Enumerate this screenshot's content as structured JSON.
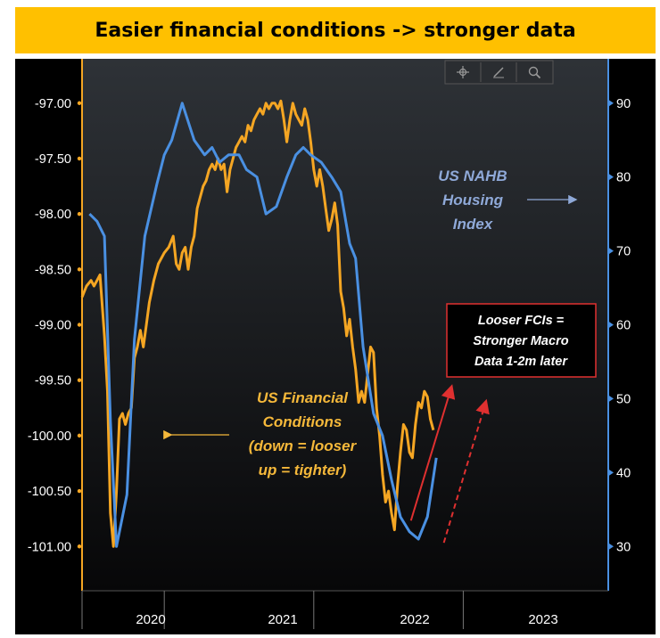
{
  "banner": {
    "title": "Easier financial conditions -> stronger data"
  },
  "toolbar": {
    "icons": [
      "crosshair-icon",
      "pencil-icon",
      "magnifier-icon"
    ]
  },
  "colors": {
    "orange": "#f5a623",
    "blue": "#4a90e2",
    "annotationBlue": "#8fa9d8",
    "annotationOrange": "#f5b83a",
    "red": "#e03030",
    "background": "#000000"
  },
  "chart_data": {
    "type": "line",
    "x_ticks": [
      "2020",
      "2021",
      "2022",
      "2023"
    ],
    "left_axis": {
      "ylim": [
        -101.4,
        -96.6
      ],
      "ticks": [
        "-97.00",
        "-97.50",
        "-98.00",
        "-98.50",
        "-99.00",
        "-99.50",
        "-100.00",
        "-100.50",
        "-101.00"
      ],
      "tick_values": [
        -97,
        -97.5,
        -98,
        -98.5,
        -99,
        -99.5,
        -100,
        -100.5,
        -101
      ]
    },
    "right_axis": {
      "ylim": [
        24,
        96
      ],
      "ticks": [
        "90",
        "80",
        "70",
        "60",
        "50",
        "40",
        "30"
      ],
      "tick_values": [
        90,
        80,
        70,
        60,
        50,
        40,
        30
      ]
    },
    "series": [
      {
        "name": "US Financial Conditions",
        "axis": "left",
        "points": [
          [
            2019.45,
            -98.75
          ],
          [
            2019.48,
            -98.65
          ],
          [
            2019.51,
            -98.6
          ],
          [
            2019.53,
            -98.65
          ],
          [
            2019.55,
            -98.6
          ],
          [
            2019.57,
            -98.55
          ],
          [
            2019.6,
            -99.1
          ],
          [
            2019.62,
            -99.6
          ],
          [
            2019.64,
            -100.7
          ],
          [
            2019.66,
            -101.0
          ],
          [
            2019.68,
            -100.5
          ],
          [
            2019.7,
            -99.85
          ],
          [
            2019.72,
            -99.8
          ],
          [
            2019.74,
            -99.9
          ],
          [
            2019.76,
            -99.8
          ],
          [
            2019.78,
            -99.75
          ],
          [
            2019.8,
            -99.3
          ],
          [
            2019.82,
            -99.2
          ],
          [
            2019.84,
            -99.05
          ],
          [
            2019.86,
            -99.2
          ],
          [
            2019.88,
            -99.0
          ],
          [
            2019.9,
            -98.8
          ],
          [
            2019.93,
            -98.6
          ],
          [
            2019.96,
            -98.45
          ],
          [
            2020.0,
            -98.35
          ],
          [
            2020.03,
            -98.3
          ],
          [
            2020.06,
            -98.2
          ],
          [
            2020.08,
            -98.45
          ],
          [
            2020.1,
            -98.5
          ],
          [
            2020.12,
            -98.35
          ],
          [
            2020.14,
            -98.3
          ],
          [
            2020.16,
            -98.5
          ],
          [
            2020.18,
            -98.3
          ],
          [
            2020.2,
            -98.2
          ],
          [
            2020.22,
            -97.95
          ],
          [
            2020.24,
            -97.85
          ],
          [
            2020.26,
            -97.75
          ],
          [
            2020.28,
            -97.7
          ],
          [
            2020.3,
            -97.6
          ],
          [
            2020.32,
            -97.55
          ],
          [
            2020.34,
            -97.6
          ],
          [
            2020.36,
            -97.5
          ],
          [
            2020.38,
            -97.6
          ],
          [
            2020.4,
            -97.55
          ],
          [
            2020.42,
            -97.8
          ],
          [
            2020.44,
            -97.6
          ],
          [
            2020.46,
            -97.5
          ],
          [
            2020.48,
            -97.4
          ],
          [
            2020.5,
            -97.35
          ],
          [
            2020.52,
            -97.3
          ],
          [
            2020.54,
            -97.35
          ],
          [
            2020.56,
            -97.2
          ],
          [
            2020.58,
            -97.25
          ],
          [
            2020.6,
            -97.15
          ],
          [
            2020.62,
            -97.1
          ],
          [
            2020.64,
            -97.05
          ],
          [
            2020.66,
            -97.1
          ],
          [
            2020.68,
            -97.0
          ],
          [
            2020.7,
            -97.05
          ],
          [
            2020.72,
            -97.0
          ],
          [
            2020.74,
            -97.0
          ],
          [
            2020.76,
            -97.05
          ],
          [
            2020.78,
            -96.98
          ],
          [
            2020.8,
            -97.15
          ],
          [
            2020.82,
            -97.35
          ],
          [
            2020.84,
            -97.15
          ],
          [
            2020.86,
            -97.0
          ],
          [
            2020.88,
            -97.1
          ],
          [
            2020.9,
            -97.15
          ],
          [
            2020.92,
            -97.2
          ],
          [
            2020.94,
            -97.05
          ],
          [
            2020.96,
            -97.15
          ],
          [
            2020.98,
            -97.35
          ],
          [
            2021.0,
            -97.6
          ],
          [
            2021.02,
            -97.75
          ],
          [
            2021.04,
            -97.6
          ],
          [
            2021.06,
            -97.75
          ],
          [
            2021.08,
            -97.95
          ],
          [
            2021.1,
            -98.15
          ],
          [
            2021.12,
            -98.05
          ],
          [
            2021.14,
            -97.9
          ],
          [
            2021.16,
            -98.1
          ],
          [
            2021.18,
            -98.7
          ],
          [
            2021.2,
            -98.85
          ],
          [
            2021.22,
            -99.1
          ],
          [
            2021.24,
            -98.95
          ],
          [
            2021.26,
            -99.2
          ],
          [
            2021.28,
            -99.4
          ],
          [
            2021.3,
            -99.7
          ],
          [
            2021.32,
            -99.6
          ],
          [
            2021.34,
            -99.7
          ],
          [
            2021.36,
            -99.45
          ],
          [
            2021.38,
            -99.2
          ],
          [
            2021.4,
            -99.25
          ],
          [
            2021.42,
            -99.75
          ],
          [
            2021.44,
            -100.0
          ],
          [
            2021.46,
            -100.35
          ],
          [
            2021.48,
            -100.6
          ],
          [
            2021.5,
            -100.5
          ],
          [
            2021.52,
            -100.7
          ],
          [
            2021.54,
            -100.85
          ],
          [
            2021.56,
            -100.45
          ],
          [
            2021.58,
            -100.15
          ],
          [
            2021.6,
            -99.9
          ],
          [
            2021.62,
            -99.95
          ],
          [
            2021.64,
            -100.15
          ],
          [
            2021.66,
            -100.2
          ],
          [
            2021.68,
            -99.9
          ],
          [
            2021.7,
            -99.7
          ],
          [
            2021.72,
            -99.75
          ],
          [
            2021.74,
            -99.6
          ],
          [
            2021.76,
            -99.65
          ],
          [
            2021.78,
            -99.85
          ],
          [
            2021.8,
            -99.95
          ]
        ]
      },
      {
        "name": "US NAHB Housing Index",
        "axis": "right",
        "points": [
          [
            2019.5,
            75
          ],
          [
            2019.55,
            74
          ],
          [
            2019.6,
            72
          ],
          [
            2019.64,
            47
          ],
          [
            2019.68,
            30
          ],
          [
            2019.75,
            37
          ],
          [
            2019.8,
            58
          ],
          [
            2019.87,
            72
          ],
          [
            2019.95,
            79
          ],
          [
            2020.0,
            83
          ],
          [
            2020.05,
            85
          ],
          [
            2020.12,
            90
          ],
          [
            2020.2,
            85
          ],
          [
            2020.27,
            83
          ],
          [
            2020.32,
            84
          ],
          [
            2020.37,
            82
          ],
          [
            2020.43,
            83
          ],
          [
            2020.5,
            83
          ],
          [
            2020.55,
            81
          ],
          [
            2020.62,
            80
          ],
          [
            2020.68,
            75
          ],
          [
            2020.75,
            76
          ],
          [
            2020.82,
            80
          ],
          [
            2020.88,
            83
          ],
          [
            2020.93,
            84
          ],
          [
            2020.98,
            83
          ],
          [
            2021.05,
            82
          ],
          [
            2021.12,
            80
          ],
          [
            2021.18,
            78
          ],
          [
            2021.24,
            71
          ],
          [
            2021.28,
            69
          ],
          [
            2021.33,
            57
          ],
          [
            2021.4,
            48
          ],
          [
            2021.46,
            45
          ],
          [
            2021.52,
            39
          ],
          [
            2021.58,
            34
          ],
          [
            2021.64,
            32
          ],
          [
            2021.7,
            31
          ],
          [
            2021.76,
            34
          ],
          [
            2021.82,
            42
          ]
        ]
      }
    ],
    "arrows": [
      {
        "name": "red-solid-arrow",
        "from": [
          2021.65,
          33.5
        ],
        "to": [
          2021.92,
          51.5
        ],
        "style": "solid"
      },
      {
        "name": "red-dashed-arrow",
        "from": [
          2021.87,
          30.5
        ],
        "to": [
          2022.15,
          49.5
        ],
        "style": "dashed"
      }
    ],
    "annotations": {
      "fci_label": [
        "US Financial",
        "Conditions",
        "(down = looser",
        "up = tighter)"
      ],
      "nahb_label": [
        "US NAHB",
        "Housing",
        "Index"
      ],
      "box_label": [
        "Looser FCIs =",
        "Stronger Macro",
        "Data 1-2m later"
      ]
    }
  }
}
